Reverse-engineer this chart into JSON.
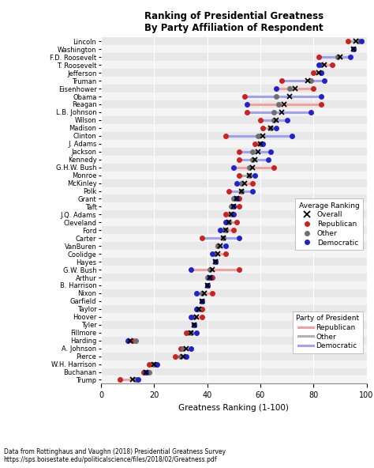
{
  "title": "Ranking of Presidential Greatness\nBy Party Affiliation of Respondent",
  "xlabel": "Greatness Ranking (1-100)",
  "footnote1": "Data from Rottinghaus and Vaughn (2018) Presidential Greatness Survey",
  "footnote2": "https://sps.boisestate.edu/politicalscience/files/2018/02/Greatness.pdf",
  "presidents": [
    "Lincoln",
    "Washington",
    "F.D. Roosevelt",
    "T. Roosevelt",
    "Jefferson",
    "Truman",
    "Eisenhower",
    "Obama",
    "Reagan",
    "L.B. Johnson",
    "Wilson",
    "Madison",
    "Clinton",
    "J. Adams",
    "Jackson",
    "Kennedy",
    "G.H.W. Bush",
    "Monroe",
    "McKinley",
    "Polk",
    "Grant",
    "Taft",
    "J.Q. Adams",
    "Cleveland",
    "Ford",
    "Carter",
    "VanBuren",
    "Coolidge",
    "Hayes",
    "G.W. Bush",
    "Arthur",
    "B. Harrison",
    "Nixon",
    "Garfield",
    "Taylor",
    "Hoover",
    "Tyler",
    "Fillmore",
    "Harding",
    "A. Johnson",
    "Pierce",
    "W.H. Harrison",
    "Buchanan",
    "Trump"
  ],
  "party_of_president": [
    "Other",
    "Other",
    "Democratic",
    "Republican",
    "Other",
    "Democratic",
    "Republican",
    "Democratic",
    "Republican",
    "Democratic",
    "Democratic",
    "Other",
    "Democratic",
    "Other",
    "Democratic",
    "Democratic",
    "Republican",
    "Other",
    "Republican",
    "Democratic",
    "Republican",
    "Republican",
    "Other",
    "Other",
    "Republican",
    "Democratic",
    "Democratic",
    "Republican",
    "Republican",
    "Republican",
    "Republican",
    "Republican",
    "Republican",
    "Republican",
    "Other",
    "Republican",
    "Other",
    "Other",
    "Republican",
    "Democratic",
    "Democratic",
    "Other",
    "Democratic",
    "Republican"
  ],
  "overall": [
    96,
    95,
    90,
    84,
    82,
    78,
    73,
    71,
    69,
    68,
    66,
    64,
    61,
    60,
    59,
    58,
    57,
    56,
    54,
    53,
    51,
    50,
    49,
    48,
    47,
    46,
    45,
    44,
    43,
    42,
    41,
    40,
    39,
    38,
    37,
    36,
    35,
    34,
    11,
    32,
    31,
    20,
    17,
    12
  ],
  "republican": [
    93,
    95,
    82,
    87,
    80,
    68,
    80,
    54,
    83,
    55,
    60,
    61,
    47,
    58,
    52,
    52,
    65,
    52,
    57,
    48,
    52,
    52,
    47,
    51,
    50,
    38,
    44,
    47,
    43,
    52,
    42,
    40,
    42,
    38,
    38,
    38,
    35,
    32,
    12,
    30,
    28,
    18,
    16,
    7
  ],
  "other": [
    97,
    95,
    89,
    83,
    83,
    79,
    71,
    66,
    67,
    65,
    65,
    64,
    59,
    60,
    57,
    57,
    56,
    56,
    53,
    53,
    50,
    49,
    49,
    48,
    47,
    46,
    44,
    43,
    43,
    41,
    40,
    40,
    38,
    38,
    37,
    35,
    35,
    34,
    13,
    31,
    30,
    20,
    18,
    13
  ],
  "democratic": [
    98,
    95,
    94,
    82,
    83,
    84,
    66,
    83,
    55,
    79,
    70,
    66,
    72,
    61,
    64,
    63,
    50,
    58,
    51,
    57,
    51,
    50,
    50,
    47,
    45,
    52,
    47,
    42,
    43,
    34,
    41,
    40,
    36,
    38,
    36,
    34,
    35,
    36,
    10,
    34,
    32,
    21,
    17,
    14
  ],
  "rep_line_color": "#f4a0a0",
  "dem_line_color": "#a0a0f4",
  "other_line_color": "#b0b0b0",
  "rep_dot_color": "#cc2222",
  "dem_dot_color": "#2222cc",
  "other_dot_color": "#707070",
  "overall_marker_color": "#202020"
}
